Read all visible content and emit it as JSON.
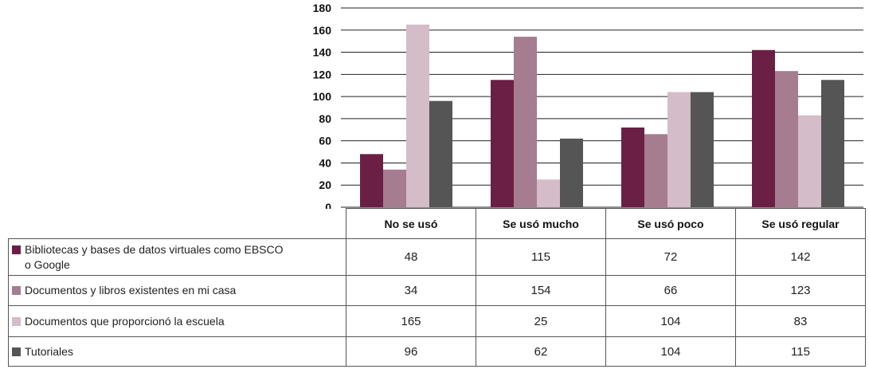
{
  "chart_data": {
    "type": "bar",
    "categories": [
      "No se usó",
      "Se usó mucho",
      "Se usó poco",
      "Se usó regular"
    ],
    "ylim": [
      0,
      180
    ],
    "yticks": [
      0,
      20,
      40,
      60,
      80,
      100,
      120,
      140,
      160,
      180
    ],
    "grid": true,
    "legend": "table-left",
    "title": "",
    "xlabel": "",
    "ylabel": "",
    "series": [
      {
        "name": "Bibliotecas y bases de datos virtuales como EBSCO o Google",
        "color": "#6b1f45",
        "values": [
          48,
          115,
          72,
          142
        ],
        "labels": [
          "48",
          "115",
          "72",
          "142"
        ]
      },
      {
        "name": "Documentos y libros existentes en mi casa",
        "color": "#a57c90",
        "values": [
          34,
          154,
          66,
          123
        ],
        "labels": [
          "34",
          "154",
          "66",
          "123"
        ]
      },
      {
        "name": "Documentos que proporcionó la escuela",
        "color": "#d4bcc8",
        "values": [
          165,
          25,
          104,
          83
        ],
        "labels": [
          "165",
          "25",
          "104",
          "83"
        ]
      },
      {
        "name": "Tutoriales",
        "color": "#555555",
        "values": [
          96,
          62,
          104,
          115
        ],
        "labels": [
          "96",
          "62",
          "104",
          "115"
        ]
      }
    ]
  }
}
